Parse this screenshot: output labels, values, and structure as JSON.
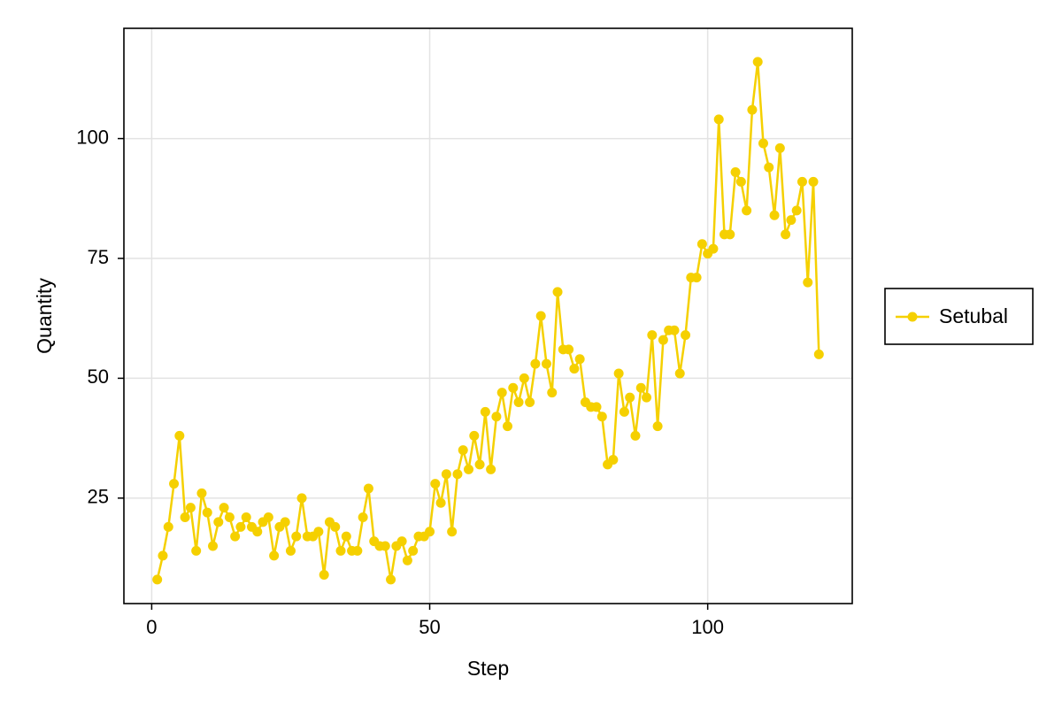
{
  "chart_data": {
    "type": "line",
    "title": "",
    "xlabel": "Step",
    "ylabel": "Quantity",
    "xlim": [
      -5,
      126
    ],
    "ylim": [
      3,
      123
    ],
    "xticks": [
      0,
      50,
      100
    ],
    "yticks": [
      25,
      50,
      75,
      100
    ],
    "xtick_labels": [
      "0",
      "50",
      "100"
    ],
    "ytick_labels": [
      "25",
      "50",
      "75",
      "100"
    ],
    "grid": true,
    "legend_position": "right",
    "series": [
      {
        "name": "Setubal",
        "color": "#f5d000",
        "marker": "circle",
        "x": [
          1,
          2,
          3,
          4,
          5,
          6,
          7,
          8,
          9,
          10,
          11,
          12,
          13,
          14,
          15,
          16,
          17,
          18,
          19,
          20,
          21,
          22,
          23,
          24,
          25,
          26,
          27,
          28,
          29,
          30,
          31,
          32,
          33,
          34,
          35,
          36,
          37,
          38,
          39,
          40,
          41,
          42,
          43,
          44,
          45,
          46,
          47,
          48,
          49,
          50,
          51,
          52,
          53,
          54,
          55,
          56,
          57,
          58,
          59,
          60,
          61,
          62,
          63,
          64,
          65,
          66,
          67,
          68,
          69,
          70,
          71,
          72,
          73,
          74,
          75,
          76,
          77,
          78,
          79,
          80,
          81,
          82,
          83,
          84,
          85,
          86,
          87,
          88,
          89,
          90,
          91,
          92,
          93,
          94,
          95,
          96,
          97,
          98,
          99,
          100,
          101,
          102,
          103,
          104,
          105,
          106,
          107,
          108,
          109,
          110,
          111,
          112,
          113,
          114,
          115,
          116,
          117,
          118,
          119,
          120
        ],
        "y": [
          8,
          13,
          19,
          28,
          38,
          21,
          23,
          14,
          26,
          22,
          15,
          20,
          23,
          21,
          17,
          19,
          21,
          19,
          18,
          20,
          21,
          13,
          19,
          20,
          14,
          17,
          25,
          17,
          17,
          18,
          9,
          20,
          19,
          14,
          17,
          14,
          14,
          21,
          27,
          16,
          15,
          15,
          8,
          15,
          16,
          12,
          14,
          17,
          17,
          18,
          28,
          24,
          30,
          18,
          30,
          35,
          31,
          38,
          32,
          43,
          31,
          42,
          47,
          40,
          48,
          45,
          50,
          45,
          53,
          63,
          53,
          47,
          68,
          56,
          56,
          52,
          54,
          45,
          44,
          44,
          42,
          32,
          33,
          51,
          43,
          46,
          38,
          48,
          46,
          59,
          40,
          58,
          60,
          60,
          51,
          59,
          71,
          71,
          78,
          76,
          77,
          104,
          80,
          80,
          93,
          91,
          85,
          106,
          116,
          99,
          94,
          84,
          98,
          80,
          83,
          85,
          91,
          70,
          91,
          55
        ]
      }
    ]
  }
}
